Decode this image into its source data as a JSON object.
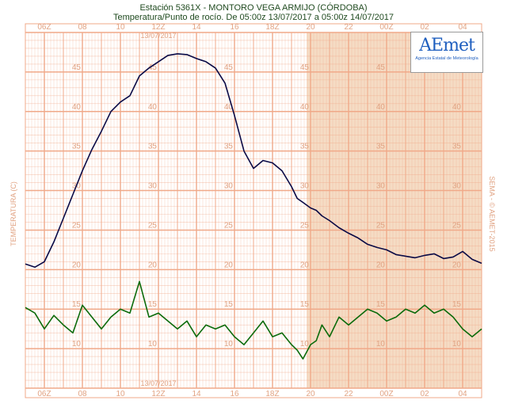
{
  "title": "Estación 5361X - MONTORO VEGA ARMIJO (CÓRDOBA)",
  "subtitle": "Temperatura/Punto de rocío. De 05:00z 13/07/2017 a 05:00z 14/07/2017",
  "ylabel": "TEMPERATURA (C)",
  "copyright": "SEMA - © AEMET-2015",
  "logo": {
    "word": "AEmet",
    "sub": "Agencia Estatal de Meteorología"
  },
  "colors": {
    "temperature": "#0a0a46",
    "dewpoint": "#0b6b0b",
    "grid": "#f0a989",
    "night": "#f5dcc4",
    "axis_text": "#e1a383"
  },
  "chart_data": {
    "type": "line",
    "title": "Estación 5361X - MONTORO VEGA ARMIJO (CÓRDOBA)",
    "subtitle": "Temperatura/Punto de rocío. De 05:00z 13/07/2017 a 05:00z 14/07/2017",
    "ylabel": "TEMPERATURA (C)",
    "xlim": [
      0,
      24
    ],
    "ylim": [
      5,
      50
    ],
    "yticks": [
      10,
      15,
      20,
      25,
      30,
      35,
      40,
      45
    ],
    "grid": true,
    "date_labels": [
      "13/07/2017",
      "13/07/2017"
    ],
    "x_tick_labels": [
      "06Z",
      "08",
      "10",
      "12Z",
      "14",
      "16",
      "18Z",
      "20",
      "22",
      "00Z",
      "02",
      "04"
    ],
    "shaded_from_hour": 14.8,
    "series": [
      {
        "name": "Temperatura",
        "x": [
          0,
          0.5,
          1,
          1.5,
          2,
          2.5,
          3,
          3.5,
          4,
          4.5,
          5,
          5.5,
          6,
          6.5,
          7,
          7.5,
          8,
          8.5,
          9,
          9.5,
          10,
          10.5,
          11,
          11.5,
          12,
          12.5,
          13,
          13.5,
          14,
          14.3,
          14.6,
          15,
          15.3,
          15.6,
          16,
          16.5,
          17,
          17.5,
          18,
          18.5,
          19,
          19.5,
          20,
          20.5,
          21,
          21.5,
          22,
          22.5,
          23,
          23.5,
          24
        ],
        "y": [
          20.7,
          20.3,
          21.0,
          23.5,
          26.5,
          29.5,
          32.5,
          35.2,
          37.5,
          40.0,
          41.2,
          42.0,
          44.5,
          45.5,
          46.3,
          47.1,
          47.3,
          47.2,
          46.7,
          46.3,
          45.5,
          43.6,
          39.5,
          35.0,
          32.8,
          33.8,
          33.5,
          32.5,
          30.5,
          29.0,
          28.5,
          27.8,
          27.5,
          26.8,
          26.2,
          25.3,
          24.6,
          24.0,
          23.2,
          22.8,
          22.5,
          21.9,
          21.7,
          21.5,
          21.8,
          22.0,
          21.4,
          21.6,
          22.3,
          21.3,
          20.8
        ]
      },
      {
        "name": "Punto de rocío",
        "x": [
          0,
          0.5,
          1,
          1.5,
          2,
          2.5,
          3,
          3.5,
          4,
          4.5,
          5,
          5.5,
          6,
          6.5,
          7,
          7.5,
          8,
          8.5,
          9,
          9.5,
          10,
          10.5,
          11,
          11.5,
          12,
          12.5,
          13,
          13.5,
          14,
          14.3,
          14.6,
          15,
          15.3,
          15.6,
          16,
          16.5,
          17,
          17.5,
          18,
          18.5,
          19,
          19.5,
          20,
          20.5,
          21,
          21.5,
          22,
          22.5,
          23,
          23.5,
          24
        ],
        "y": [
          15.2,
          14.5,
          12.5,
          14.2,
          13.0,
          12.0,
          15.5,
          14.0,
          12.5,
          14.0,
          15.0,
          14.5,
          18.5,
          14.0,
          14.5,
          13.5,
          12.5,
          13.5,
          11.5,
          13.0,
          12.5,
          13.0,
          11.5,
          10.5,
          12.0,
          13.5,
          11.5,
          12.0,
          10.5,
          9.8,
          8.7,
          10.5,
          11.0,
          13.0,
          11.5,
          14.0,
          13.0,
          14.0,
          15.0,
          14.5,
          13.5,
          14.0,
          15.0,
          14.5,
          15.5,
          14.5,
          15.0,
          14.0,
          12.5,
          11.5,
          12.5
        ]
      }
    ]
  }
}
